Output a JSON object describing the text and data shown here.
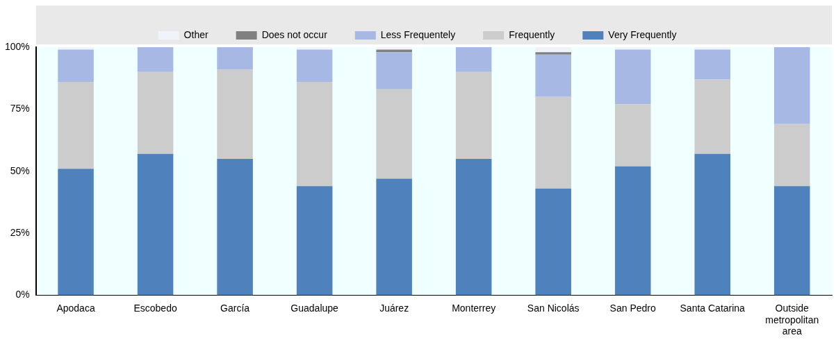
{
  "chart_data": {
    "type": "bar",
    "stacked": true,
    "legend": "top",
    "categories": [
      "Apodaca",
      "Escobedo",
      "García",
      "Guadalupe",
      "Juárez",
      "Monterrey",
      "San Nicolás",
      "San Pedro",
      "Santa Catarina",
      "Outside metropolitan area"
    ],
    "series": [
      {
        "name": "Very Frequently",
        "color": "#4f81bd",
        "values": [
          51,
          57,
          55,
          44,
          47,
          55,
          43,
          52,
          57,
          44
        ]
      },
      {
        "name": "Frequently",
        "color": "#cccccc",
        "values": [
          35,
          33,
          36,
          42,
          36,
          35,
          37,
          25,
          30,
          25
        ]
      },
      {
        "name": "Less Frequentely",
        "color": "#a6b8e3",
        "values": [
          13,
          10,
          9,
          13,
          15,
          10,
          17,
          22,
          12,
          31
        ]
      },
      {
        "name": "Does not occur",
        "color": "#808080",
        "values": [
          0,
          0,
          0,
          0,
          1,
          0,
          1,
          0,
          0,
          0
        ]
      },
      {
        "name": "Other",
        "color": "#f0f4fa",
        "values": [
          1,
          0,
          0,
          1,
          1,
          0,
          2,
          1,
          1,
          0
        ]
      }
    ],
    "ylim": [
      0,
      100
    ],
    "yticks": [
      {
        "value": 0,
        "label": "0%"
      },
      {
        "value": 25,
        "label": "25%"
      },
      {
        "value": 50,
        "label": "50%"
      },
      {
        "value": 75,
        "label": "75%"
      },
      {
        "value": 100,
        "label": "100%"
      }
    ],
    "grid": false
  }
}
